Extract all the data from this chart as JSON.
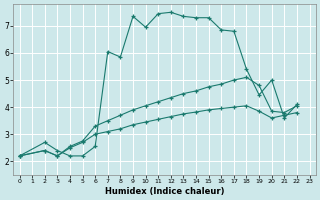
{
  "bg_color": "#cde8ea",
  "line_color": "#1a7a6e",
  "grid_color": "#ffffff",
  "xlabel": "Humidex (Indice chaleur)",
  "xlim": [
    -0.5,
    23.5
  ],
  "ylim": [
    1.5,
    7.8
  ],
  "yticks": [
    2,
    3,
    4,
    5,
    6,
    7
  ],
  "xticks": [
    0,
    1,
    2,
    3,
    4,
    5,
    6,
    7,
    8,
    9,
    10,
    11,
    12,
    13,
    14,
    15,
    16,
    17,
    18,
    19,
    20,
    21,
    22,
    23
  ],
  "line1_x": [
    0,
    2,
    3,
    4,
    5,
    6,
    7,
    8,
    9,
    10,
    11,
    12,
    13,
    14,
    15,
    16,
    17,
    18,
    19,
    20,
    21,
    22
  ],
  "line1_y": [
    2.2,
    2.7,
    2.4,
    2.2,
    2.2,
    2.55,
    6.05,
    5.85,
    7.35,
    6.95,
    7.45,
    7.5,
    7.35,
    7.3,
    7.3,
    6.85,
    6.8,
    5.4,
    4.45,
    5.0,
    3.6,
    4.1
  ],
  "line2_x": [
    0,
    2,
    3,
    4,
    5,
    6,
    7,
    8,
    9,
    10,
    11,
    12,
    13,
    14,
    15,
    16,
    17,
    18,
    19,
    20,
    21,
    22
  ],
  "line2_y": [
    2.2,
    2.4,
    2.2,
    2.55,
    2.75,
    3.3,
    3.5,
    3.7,
    3.9,
    4.05,
    4.2,
    4.35,
    4.5,
    4.6,
    4.75,
    4.85,
    5.0,
    5.1,
    4.8,
    3.85,
    3.8,
    4.05
  ],
  "line3_x": [
    0,
    2,
    3,
    4,
    5,
    6,
    7,
    8,
    9,
    10,
    11,
    12,
    13,
    14,
    15,
    16,
    17,
    18,
    19,
    20,
    21,
    22
  ],
  "line3_y": [
    2.2,
    2.4,
    2.2,
    2.5,
    2.7,
    3.0,
    3.1,
    3.2,
    3.35,
    3.45,
    3.55,
    3.65,
    3.75,
    3.82,
    3.9,
    3.95,
    4.0,
    4.05,
    3.85,
    3.6,
    3.7,
    3.8
  ]
}
